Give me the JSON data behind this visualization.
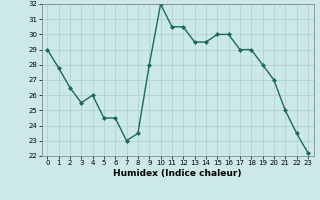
{
  "x": [
    0,
    1,
    2,
    3,
    4,
    5,
    6,
    7,
    8,
    9,
    10,
    11,
    12,
    13,
    14,
    15,
    16,
    17,
    18,
    19,
    20,
    21,
    22,
    23
  ],
  "y": [
    29,
    27.8,
    26.5,
    25.5,
    26,
    24.5,
    24.5,
    23,
    23.5,
    28,
    32,
    30.5,
    30.5,
    29.5,
    29.5,
    30,
    30,
    29,
    29,
    28,
    27,
    25,
    23.5,
    22.2
  ],
  "line_color": "#1a6b5a",
  "marker": "D",
  "marker_size": 2,
  "bg_color": "#cce8e8",
  "grid_color": "#aacfcf",
  "xlabel": "Humidex (Indice chaleur)",
  "ylim": [
    22,
    32
  ],
  "xlim": [
    -0.5,
    23.5
  ],
  "yticks": [
    22,
    23,
    24,
    25,
    26,
    27,
    28,
    29,
    30,
    31,
    32
  ],
  "xticks": [
    0,
    1,
    2,
    3,
    4,
    5,
    6,
    7,
    8,
    9,
    10,
    11,
    12,
    13,
    14,
    15,
    16,
    17,
    18,
    19,
    20,
    21,
    22,
    23
  ],
  "tick_fontsize": 5.0,
  "xlabel_fontsize": 6.5,
  "linewidth": 1.0
}
